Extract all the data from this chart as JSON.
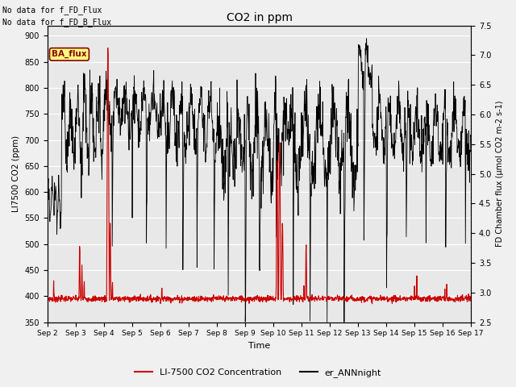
{
  "title": "CO2 in ppm",
  "xlabel": "Time",
  "ylabel_left": "LI7500 CO2 (ppm)",
  "ylabel_right": "FD Chamber flux (μmol CO2 m-2 s-1)",
  "ylim_left": [
    350,
    920
  ],
  "ylim_right": [
    2.5,
    7.5
  ],
  "yticks_left": [
    350,
    400,
    450,
    500,
    550,
    600,
    650,
    700,
    750,
    800,
    850,
    900
  ],
  "yticks_right": [
    2.5,
    3.0,
    3.5,
    4.0,
    4.5,
    5.0,
    5.5,
    6.0,
    6.5,
    7.0,
    7.5
  ],
  "xtick_labels": [
    "Sep 2",
    "Sep 3",
    "Sep 4",
    "Sep 5",
    "Sep 6",
    "Sep 7",
    "Sep 8",
    "Sep 9",
    "Sep 10",
    "Sep 11",
    "Sep 12",
    "Sep 13",
    "Sep 14",
    "Sep 15",
    "Sep 16",
    "Sep 17"
  ],
  "text_no_data_1": "No data for f_FD_Flux",
  "text_no_data_2": "No data for f_FD_B_Flux",
  "ba_flux_label": "BA_flux",
  "legend_line1_label": "LI-7500 CO2 Concentration",
  "legend_line1_color": "#cc0000",
  "legend_line2_label": "er_ANNnight",
  "legend_line2_color": "#000000",
  "plot_bg_color": "#e8e8e8",
  "fig_bg_color": "#f0f0f0",
  "n_days": 15,
  "points_per_day": 96,
  "random_seed": 7
}
